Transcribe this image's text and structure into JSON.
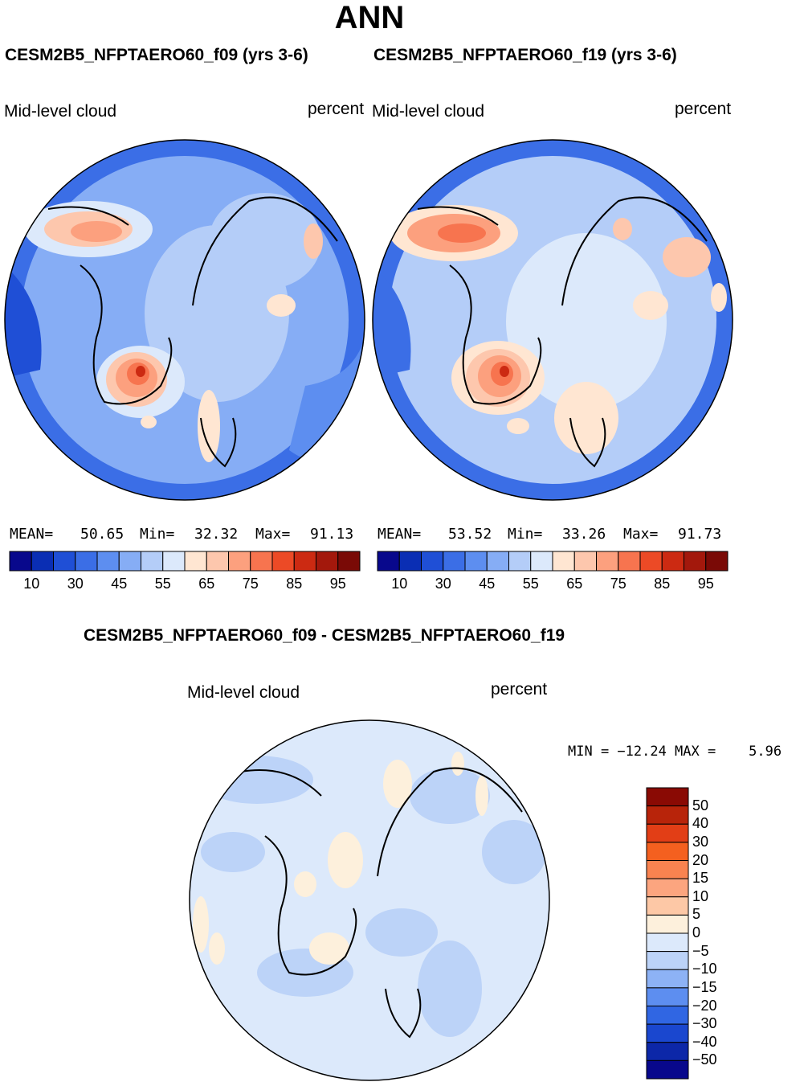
{
  "page_title": "ANN",
  "panels": [
    {
      "case_title": "CESM2B5_NFPTAERO60_f09 (yrs 3-6)",
      "variable": "Mid-level cloud",
      "units": "percent",
      "stats": {
        "mean_label": "MEAN=",
        "mean": "50.65",
        "min_label": "Min=",
        "min": "32.32",
        "max_label": "Max=",
        "max": "91.13"
      }
    },
    {
      "case_title": "CESM2B5_NFPTAERO60_f19 (yrs 3-6)",
      "variable": "Mid-level cloud",
      "units": "percent",
      "stats": {
        "mean_label": "MEAN=",
        "mean": "53.52",
        "min_label": "Min=",
        "min": "33.26",
        "max_label": "Max=",
        "max": "91.73"
      }
    }
  ],
  "diff_panel": {
    "title": "CESM2B5_NFPTAERO60_f09 - CESM2B5_NFPTAERO60_f19",
    "variable": "Mid-level cloud",
    "units": "percent",
    "stats": "MIN = −12.24 MAX =    5.96"
  },
  "abs_colorbar": {
    "colors": [
      "#08088c",
      "#0a2eb4",
      "#1f4fd6",
      "#3b6ee6",
      "#5d8ef0",
      "#86adf5",
      "#b4cdf8",
      "#dce9fb",
      "#ffe6d2",
      "#fdc7ad",
      "#fca07e",
      "#f7744f",
      "#ec4a26",
      "#cc2a12",
      "#a3180c",
      "#7a0a06"
    ],
    "tick_labels": [
      "10",
      "30",
      "45",
      "55",
      "65",
      "75",
      "85",
      "95"
    ]
  },
  "diff_colorbar": {
    "colors": [
      "#08088c",
      "#0c27a8",
      "#1a47cf",
      "#3066e3",
      "#5d8ef0",
      "#8db2f5",
      "#bcd3f8",
      "#dce9fb",
      "#fdf0dc",
      "#fdc8a6",
      "#fca57f",
      "#f98350",
      "#f4601f",
      "#e23e16",
      "#b8240a",
      "#8a0a04"
    ],
    "tick_labels": [
      "50",
      "40",
      "30",
      "20",
      "15",
      "10",
      "5",
      "0",
      "−5",
      "−10",
      "−15",
      "−20",
      "−30",
      "−40",
      "−50"
    ]
  }
}
